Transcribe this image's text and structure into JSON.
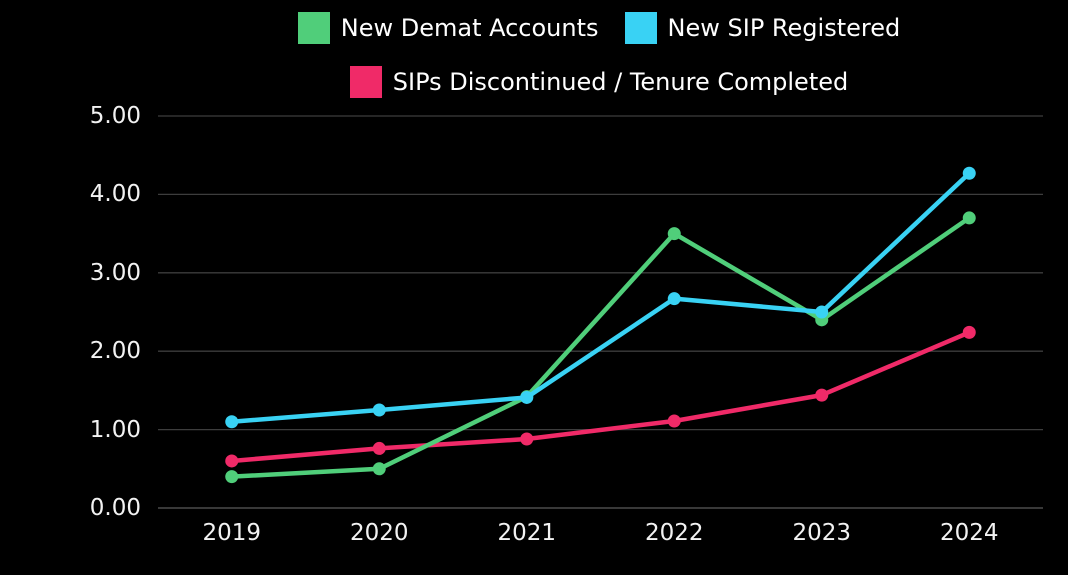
{
  "legend": {
    "items": [
      {
        "label": "New Demat Accounts",
        "color": "#50ce7a"
      },
      {
        "label": "New SIP Registered",
        "color": "#39d2f4"
      },
      {
        "label": "SIPs Discontinued / Tenure Completed",
        "color": "#f02a68"
      }
    ]
  },
  "chart_data": {
    "type": "line",
    "categories": [
      "2019",
      "2020",
      "2021",
      "2022",
      "2023",
      "2024"
    ],
    "series": [
      {
        "name": "New Demat Accounts",
        "color": "#50ce7a",
        "values": [
          0.4,
          0.5,
          1.42,
          3.5,
          2.4,
          3.7
        ]
      },
      {
        "name": "New SIP Registered",
        "color": "#39d2f4",
        "values": [
          1.1,
          1.25,
          1.41,
          2.67,
          2.5,
          4.27
        ]
      },
      {
        "name": "SIPs Discontinued / Tenure Completed",
        "color": "#f02a68",
        "values": [
          0.6,
          0.76,
          0.88,
          1.11,
          1.44,
          2.24
        ]
      }
    ],
    "title": "",
    "xlabel": "",
    "ylabel": "",
    "ylim": [
      0,
      5
    ],
    "ytick_step": 1,
    "ytick_labels": [
      "0.00",
      "1.00",
      "2.00",
      "3.00",
      "4.00",
      "5.00"
    ],
    "grid": "horizontal",
    "legend_position": "top",
    "background_color": "#000000",
    "grid_color": "#3d3d3d",
    "axis_line_color": "#5a5a5a",
    "text_color": "#f2f2f2",
    "marker": "circle"
  }
}
